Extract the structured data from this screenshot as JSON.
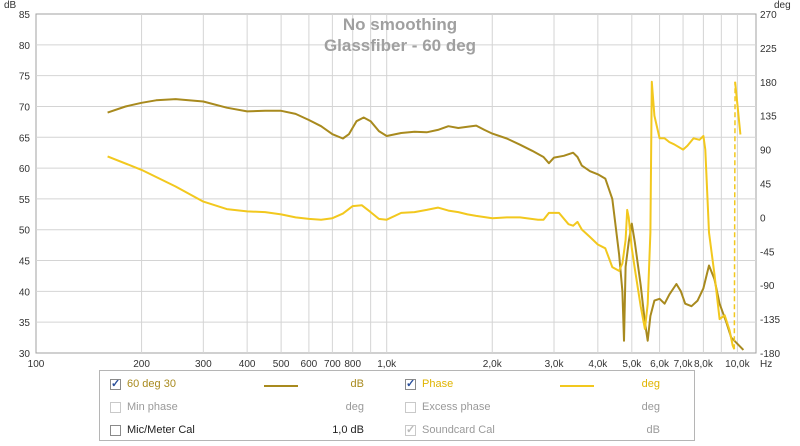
{
  "chart_data": {
    "type": "line",
    "title": "No smoothing",
    "subtitle": "Glassfiber - 60 deg",
    "left_axis_label": "dB",
    "right_axis_label": "deg",
    "x_unit_label": "Hz",
    "x_scale": "log",
    "xlim": [
      100,
      11300
    ],
    "ylim_left": [
      30,
      85
    ],
    "ylim_right": [
      -180,
      270
    ],
    "grid": true,
    "left_ticks": [
      "30",
      "35",
      "40",
      "45",
      "50",
      "55",
      "60",
      "65",
      "70",
      "75",
      "80",
      "85"
    ],
    "right_ticks": [
      "-180",
      "-135",
      "-90",
      "-45",
      "0",
      "45",
      "90",
      "135",
      "180",
      "225",
      "270"
    ],
    "x_ticks": [
      {
        "v": 100,
        "t": "100"
      },
      {
        "v": 200,
        "t": "200"
      },
      {
        "v": 300,
        "t": "300"
      },
      {
        "v": 400,
        "t": "400"
      },
      {
        "v": 500,
        "t": "500"
      },
      {
        "v": 600,
        "t": "600"
      },
      {
        "v": 700,
        "t": "700"
      },
      {
        "v": 800,
        "t": "800"
      },
      {
        "v": 1000,
        "t": "1,0k"
      },
      {
        "v": 2000,
        "t": "2,0k"
      },
      {
        "v": 3000,
        "t": "3,0k"
      },
      {
        "v": 4000,
        "t": "4,0k"
      },
      {
        "v": 5000,
        "t": "5,0k"
      },
      {
        "v": 6000,
        "t": "6,0k"
      },
      {
        "v": 7000,
        "t": "7,0k"
      },
      {
        "v": 8000,
        "t": "8,0k"
      },
      {
        "v": 10000,
        "t": "10,0k"
      }
    ],
    "series": [
      {
        "name": "60 deg 30",
        "axis": "left",
        "color": "#a88a1e",
        "points": [
          [
            160,
            69.0
          ],
          [
            180,
            70.0
          ],
          [
            200,
            70.6
          ],
          [
            220,
            71.0
          ],
          [
            250,
            71.2
          ],
          [
            300,
            70.8
          ],
          [
            350,
            69.8
          ],
          [
            400,
            69.2
          ],
          [
            450,
            69.3
          ],
          [
            500,
            69.3
          ],
          [
            550,
            68.8
          ],
          [
            600,
            67.8
          ],
          [
            650,
            66.8
          ],
          [
            700,
            65.5
          ],
          [
            750,
            64.8
          ],
          [
            780,
            65.5
          ],
          [
            820,
            67.6
          ],
          [
            860,
            68.2
          ],
          [
            900,
            67.6
          ],
          [
            950,
            66.0
          ],
          [
            1000,
            65.2
          ],
          [
            1100,
            65.7
          ],
          [
            1200,
            65.9
          ],
          [
            1300,
            65.8
          ],
          [
            1400,
            66.2
          ],
          [
            1500,
            66.8
          ],
          [
            1600,
            66.5
          ],
          [
            1700,
            66.7
          ],
          [
            1800,
            66.9
          ],
          [
            1900,
            66.2
          ],
          [
            2000,
            65.6
          ],
          [
            2200,
            64.8
          ],
          [
            2400,
            63.8
          ],
          [
            2600,
            62.8
          ],
          [
            2800,
            61.8
          ],
          [
            2900,
            60.8
          ],
          [
            3000,
            61.7
          ],
          [
            3200,
            62.0
          ],
          [
            3400,
            62.5
          ],
          [
            3500,
            61.8
          ],
          [
            3600,
            60.4
          ],
          [
            3800,
            59.5
          ],
          [
            4000,
            59.0
          ],
          [
            4200,
            58.3
          ],
          [
            4400,
            55.0
          ],
          [
            4600,
            46.0
          ],
          [
            4700,
            40.0
          ],
          [
            4750,
            32.0
          ],
          [
            4800,
            44.0
          ],
          [
            4900,
            48.0
          ],
          [
            5000,
            51.0
          ],
          [
            5100,
            48.0
          ],
          [
            5300,
            41.0
          ],
          [
            5450,
            35.0
          ],
          [
            5550,
            32.0
          ],
          [
            5650,
            36.0
          ],
          [
            5800,
            38.5
          ],
          [
            6000,
            38.8
          ],
          [
            6200,
            38.0
          ],
          [
            6400,
            39.5
          ],
          [
            6700,
            41.2
          ],
          [
            6900,
            40.0
          ],
          [
            7100,
            38.0
          ],
          [
            7400,
            37.6
          ],
          [
            7700,
            38.5
          ],
          [
            8000,
            40.5
          ],
          [
            8300,
            44.2
          ],
          [
            8600,
            42.0
          ],
          [
            8900,
            38.0
          ],
          [
            9300,
            35.0
          ],
          [
            9600,
            32.5
          ],
          [
            10000,
            31.5
          ],
          [
            10400,
            30.5
          ]
        ]
      },
      {
        "name": "Phase",
        "axis": "right",
        "color": "#f2c81e",
        "points": [
          [
            160,
            81
          ],
          [
            200,
            63
          ],
          [
            250,
            41
          ],
          [
            300,
            21
          ],
          [
            350,
            11
          ],
          [
            400,
            8
          ],
          [
            450,
            7
          ],
          [
            500,
            4
          ],
          [
            550,
            0
          ],
          [
            600,
            -2
          ],
          [
            650,
            -3
          ],
          [
            700,
            -1
          ],
          [
            750,
            5
          ],
          [
            800,
            15
          ],
          [
            850,
            16
          ],
          [
            900,
            7
          ],
          [
            950,
            -2
          ],
          [
            1000,
            -3
          ],
          [
            1100,
            6
          ],
          [
            1200,
            7
          ],
          [
            1300,
            10
          ],
          [
            1400,
            13
          ],
          [
            1500,
            9
          ],
          [
            1600,
            7
          ],
          [
            1700,
            4
          ],
          [
            1800,
            2
          ],
          [
            2000,
            -1
          ],
          [
            2200,
            0
          ],
          [
            2400,
            0
          ],
          [
            2700,
            -3
          ],
          [
            2800,
            -3
          ],
          [
            2900,
            6
          ],
          [
            3100,
            6
          ],
          [
            3300,
            -9
          ],
          [
            3400,
            -11
          ],
          [
            3500,
            -6
          ],
          [
            3600,
            -16
          ],
          [
            3800,
            -26
          ],
          [
            4000,
            -36
          ],
          [
            4200,
            -41
          ],
          [
            4400,
            -66
          ],
          [
            4600,
            -71
          ],
          [
            4700,
            -61
          ],
          [
            4800,
            -30
          ],
          [
            4850,
            10
          ],
          [
            4900,
            0
          ],
          [
            5000,
            -41
          ],
          [
            5100,
            -68
          ],
          [
            5300,
            -118
          ],
          [
            5450,
            -148
          ],
          [
            5550,
            -115
          ],
          [
            5650,
            -20
          ],
          [
            5700,
            180
          ],
          [
            5800,
            135
          ],
          [
            6000,
            105
          ],
          [
            6200,
            105
          ],
          [
            6400,
            100
          ],
          [
            6600,
            97
          ],
          [
            7000,
            90
          ],
          [
            7200,
            95
          ],
          [
            7500,
            105
          ],
          [
            7800,
            103
          ],
          [
            8000,
            108
          ],
          [
            8100,
            90
          ],
          [
            8300,
            -20
          ],
          [
            8600,
            -75
          ],
          [
            8900,
            -135
          ],
          [
            9200,
            -130
          ],
          [
            9500,
            -150
          ],
          [
            9700,
            -170
          ],
          [
            9800,
            -175
          ],
          [
            9850,
            180
          ],
          [
            10000,
            150
          ],
          [
            10200,
            110
          ]
        ]
      }
    ]
  },
  "legend": {
    "rows": [
      {
        "left": {
          "label": "60 deg 30",
          "checked": true,
          "enabled": true,
          "color": "#a88a1e",
          "unit": "dB",
          "has_swatch": true
        },
        "right": {
          "label": "Phase",
          "checked": true,
          "enabled": true,
          "color": "#f2c81e",
          "unit": "deg",
          "has_swatch": true
        }
      },
      {
        "left": {
          "label": "Min phase",
          "checked": false,
          "enabled": false,
          "unit": "deg",
          "has_swatch": false
        },
        "right": {
          "label": "Excess phase",
          "checked": false,
          "enabled": false,
          "unit": "deg",
          "has_swatch": false
        }
      },
      {
        "left": {
          "label": "Mic/Meter Cal",
          "checked": false,
          "enabled": true,
          "unit": "1,0 dB",
          "has_swatch": false
        },
        "right": {
          "label": "Soundcard Cal",
          "checked": true,
          "enabled": false,
          "unit": "dB",
          "has_swatch": false
        }
      }
    ]
  }
}
